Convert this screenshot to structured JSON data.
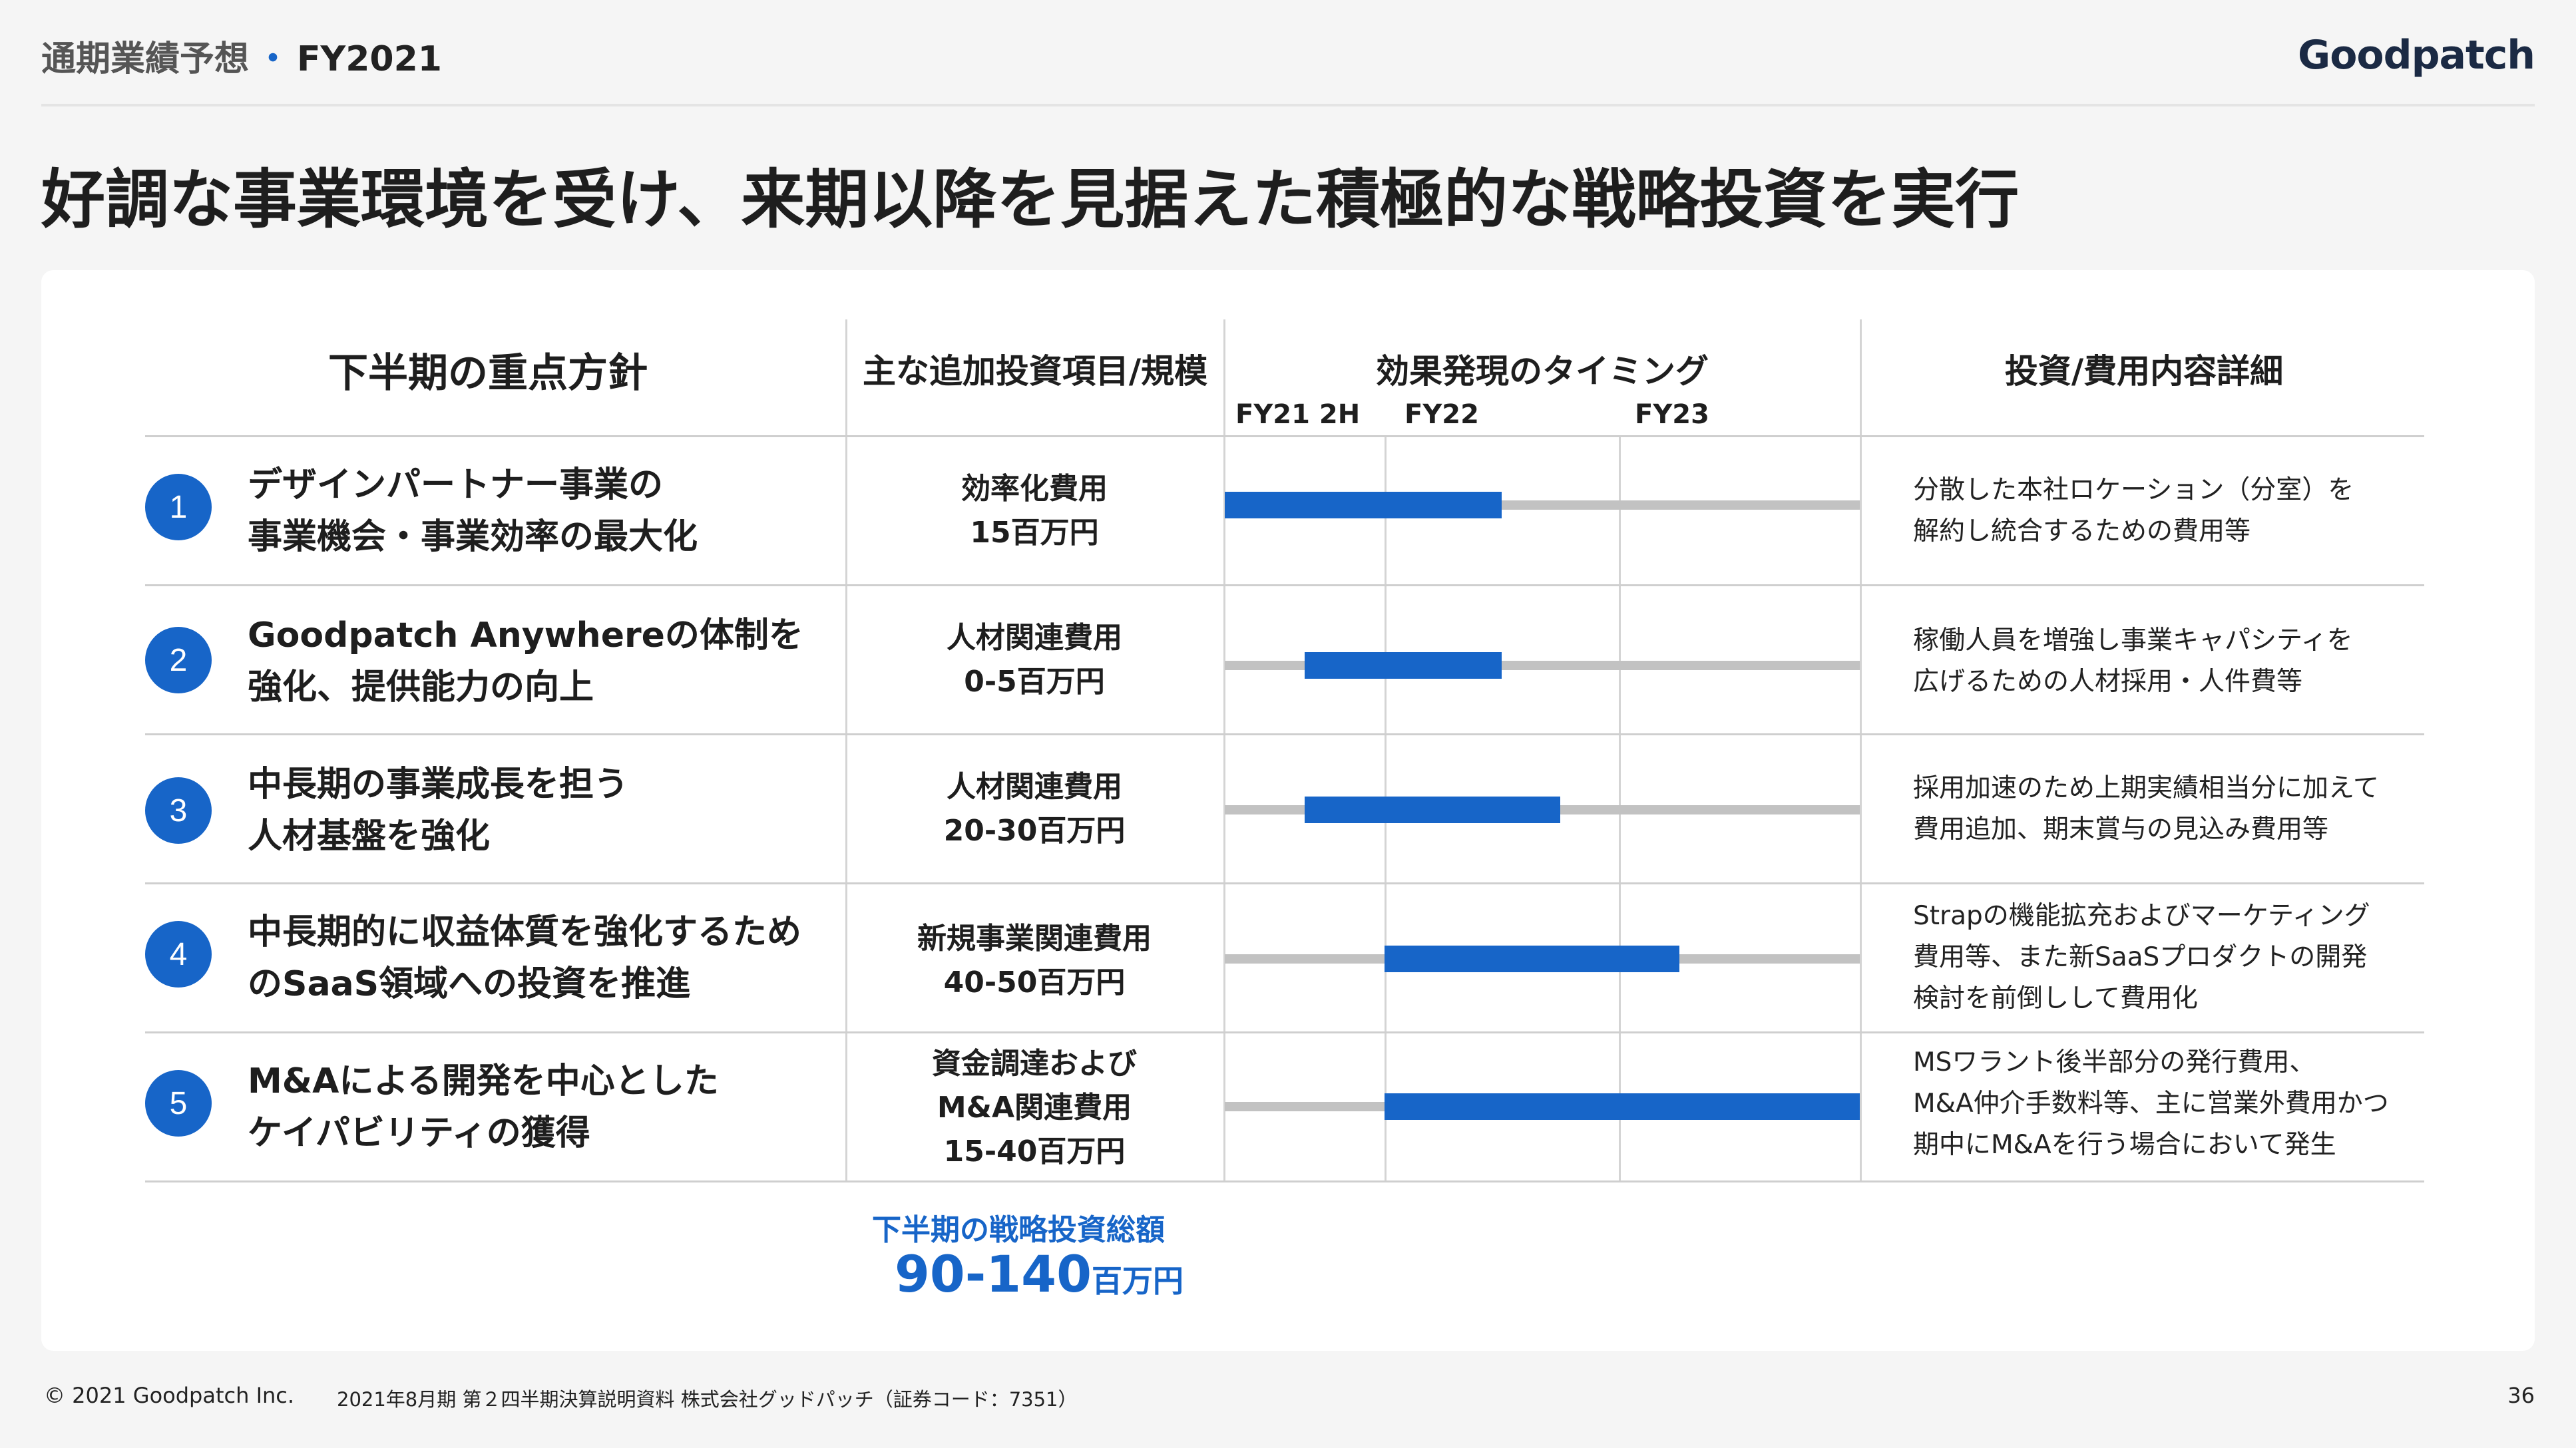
{
  "header": {
    "section": "通期業績予想",
    "separator": "・",
    "fiscal_year": "FY2021"
  },
  "logo": "Goodpatch",
  "title": "好調な事業環境を受け、来期以降を見据えた積極的な戦略投資を実行",
  "columns": {
    "policy": "下半期の重点方針",
    "investment": "主な追加投資項目/規模",
    "timing": "効果発現のタイミング",
    "details": "投資/費用内容詳細"
  },
  "timing_ticks": [
    "FY21 2H",
    "FY22",
    "FY23"
  ],
  "rows": [
    {
      "number": "1",
      "policy_lines": [
        "デザインパートナー事業の",
        "事業機会・事業効率の最大化"
      ],
      "investment_lines": [
        "効率化費用",
        "15百万円"
      ],
      "detail_lines": [
        "分散した本社ロケーション（分室）を",
        "解約し統合するための費用等"
      ],
      "timing": {
        "start": 0.0,
        "end": 1.5
      }
    },
    {
      "number": "2",
      "policy_lines": [
        "Goodpatch Anywhereの体制を",
        "強化、提供能力の向上"
      ],
      "investment_lines": [
        "人材関連費用",
        "0-5百万円"
      ],
      "detail_lines": [
        "稼働人員を増強し事業キャパシティを",
        "広げるための人材採用・人件費等"
      ],
      "timing": {
        "start": 0.5,
        "end": 1.5
      }
    },
    {
      "number": "3",
      "policy_lines": [
        "中長期の事業成長を担う",
        "人材基盤を強化"
      ],
      "investment_lines": [
        "人材関連費用",
        "20-30百万円"
      ],
      "detail_lines": [
        "採用加速のため上期実績相当分に加えて",
        "費用追加、期末賞与の見込み費用等"
      ],
      "timing": {
        "start": 0.5,
        "end": 1.75
      }
    },
    {
      "number": "4",
      "policy_lines": [
        "中長期的に収益体質を強化するため",
        "のSaaS領域への投資を推進"
      ],
      "investment_lines": [
        "新規事業関連費用",
        "40-50百万円"
      ],
      "detail_lines": [
        "Strapの機能拡充およびマーケティング",
        "費用等、また新SaaSプロダクトの開発",
        "検討を前倒しして費用化"
      ],
      "timing": {
        "start": 1.0,
        "end": 2.25
      }
    },
    {
      "number": "5",
      "policy_lines": [
        "M&Aによる開発を中心とした",
        "ケイパビリティの獲得"
      ],
      "investment_lines": [
        "資金調達および",
        "M&A関連費用",
        "15-40百万円"
      ],
      "detail_lines": [
        "MSワラント後半部分の発行費用、",
        "M&A仲介手数料等、主に営業外費用かつ",
        "期中にM&Aを行う場合において発生"
      ],
      "timing": {
        "start": 1.0,
        "end": 3.0
      }
    }
  ],
  "total": {
    "label": "下半期の戦略投資総額",
    "value": "90-140",
    "unit": "百万円"
  },
  "colors": {
    "accent": "#1765c8",
    "track": "#c2c2c2"
  },
  "footer": {
    "copyright": "© 2021 Goodpatch Inc.",
    "source": "2021年8月期 第２四半期決算説明資料 株式会社グッドパッチ（証券コード：7351）",
    "page": "36"
  }
}
